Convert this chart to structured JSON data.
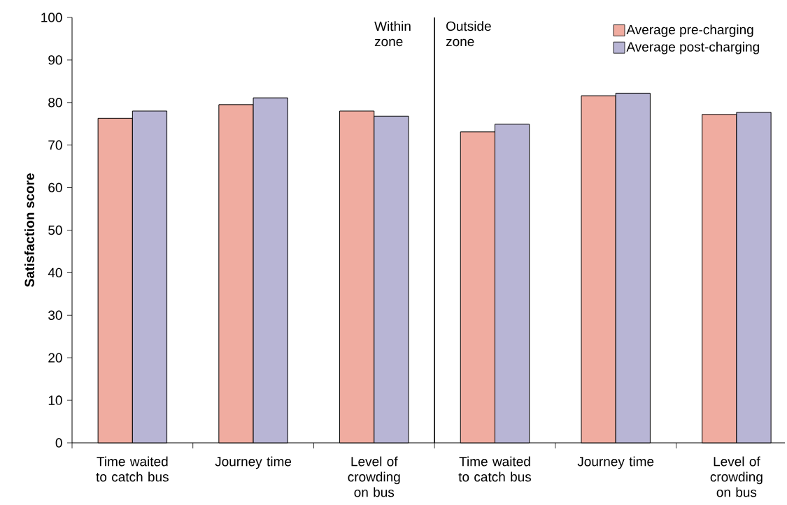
{
  "chart_data": {
    "type": "bar",
    "ylabel": "Satisfaction score",
    "categories": [
      "Time waited to catch bus",
      "Journey time",
      "Level of crowding on bus",
      "Time waited to catch bus",
      "Journey time",
      "Level of crowding on bus"
    ],
    "series": [
      {
        "name": "Average pre-charging",
        "color": "#f0aca0",
        "values": [
          76.3,
          79.5,
          78.0,
          73.1,
          81.6,
          77.2
        ]
      },
      {
        "name": "Average post-charging",
        "color": "#b8b5d5",
        "values": [
          78.0,
          81.1,
          76.8,
          74.9,
          82.2,
          77.7
        ]
      }
    ],
    "ylim": [
      0,
      100
    ],
    "yticks": [
      0,
      10,
      20,
      30,
      40,
      50,
      60,
      70,
      80,
      90,
      100
    ],
    "annotations": [
      "Within zone",
      "Outside zone"
    ],
    "grid": false,
    "legend": "top right"
  }
}
